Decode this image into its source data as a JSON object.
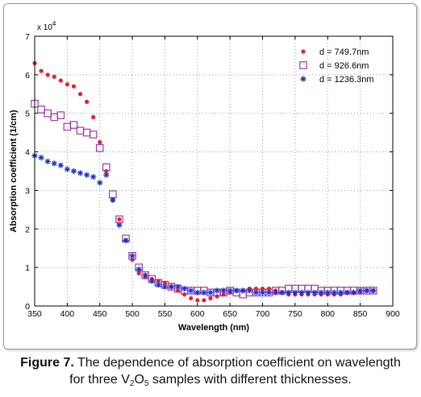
{
  "chart_data": {
    "type": "scatter",
    "xlabel": "Wavelength (nm)",
    "ylabel": "Absorption coefficient (1/cm)",
    "y_multiplier": "x 10",
    "y_multiplier_exp": "4",
    "xlim": [
      350,
      900
    ],
    "ylim": [
      0,
      7
    ],
    "xticks": [
      350,
      400,
      450,
      500,
      550,
      600,
      650,
      700,
      750,
      800,
      850,
      900
    ],
    "yticks": [
      0,
      1,
      2,
      3,
      4,
      5,
      6,
      7
    ],
    "grid": true,
    "legend_position": "top-right",
    "series": [
      {
        "name": "d = 749.7nm",
        "marker": "filled-circle",
        "color": "#e8202a",
        "x": [
          350,
          360,
          370,
          380,
          390,
          400,
          410,
          420,
          430,
          440,
          450,
          460,
          470,
          480,
          490,
          500,
          510,
          520,
          530,
          540,
          550,
          560,
          570,
          580,
          590,
          600,
          610,
          620,
          630,
          640,
          650,
          660,
          670,
          680,
          690,
          700,
          710,
          720,
          730,
          740,
          750,
          760,
          770,
          780,
          790,
          800,
          810,
          820,
          830,
          840,
          850,
          860,
          870
        ],
        "y": [
          6.3,
          6.1,
          6.0,
          5.95,
          5.85,
          5.75,
          5.7,
          5.5,
          5.3,
          4.9,
          4.25,
          3.5,
          2.75,
          2.25,
          1.7,
          1.2,
          0.85,
          0.75,
          0.7,
          0.65,
          0.6,
          0.5,
          0.4,
          0.3,
          0.2,
          0.15,
          0.15,
          0.2,
          0.25,
          0.3,
          0.35,
          0.4,
          0.4,
          0.45,
          0.45,
          0.45,
          0.45,
          0.4,
          0.35,
          0.3,
          0.3,
          0.3,
          0.3,
          0.3,
          0.3,
          0.3,
          0.3,
          0.3,
          0.35,
          0.35,
          0.35,
          0.4,
          0.4
        ]
      },
      {
        "name": "d = 926.6nm",
        "marker": "open-square",
        "color": "#a03aa8",
        "x": [
          350,
          360,
          370,
          380,
          390,
          400,
          410,
          420,
          430,
          440,
          450,
          460,
          470,
          480,
          490,
          500,
          510,
          520,
          530,
          540,
          550,
          560,
          570,
          580,
          590,
          600,
          610,
          620,
          630,
          640,
          650,
          660,
          670,
          680,
          690,
          700,
          710,
          720,
          730,
          740,
          750,
          760,
          770,
          780,
          790,
          800,
          810,
          820,
          830,
          840,
          850,
          860,
          870
        ],
        "y": [
          5.25,
          5.1,
          5.0,
          4.9,
          4.95,
          4.65,
          4.7,
          4.55,
          4.5,
          4.45,
          4.1,
          3.6,
          2.9,
          2.25,
          1.75,
          1.3,
          1.0,
          0.8,
          0.7,
          0.6,
          0.55,
          0.5,
          0.45,
          0.4,
          0.4,
          0.4,
          0.4,
          0.35,
          0.35,
          0.35,
          0.4,
          0.35,
          0.3,
          0.35,
          0.35,
          0.35,
          0.35,
          0.4,
          0.4,
          0.45,
          0.45,
          0.45,
          0.45,
          0.45,
          0.4,
          0.4,
          0.4,
          0.4,
          0.4,
          0.4,
          0.4,
          0.4,
          0.4
        ]
      },
      {
        "name": "d = 1236.3nm",
        "marker": "star",
        "color": "#1a35c8",
        "x": [
          350,
          360,
          370,
          380,
          390,
          400,
          410,
          420,
          430,
          440,
          450,
          460,
          470,
          480,
          490,
          500,
          510,
          520,
          530,
          540,
          550,
          560,
          570,
          580,
          590,
          600,
          610,
          620,
          630,
          640,
          650,
          660,
          670,
          680,
          690,
          700,
          710,
          720,
          730,
          740,
          750,
          760,
          770,
          780,
          790,
          800,
          810,
          820,
          830,
          840,
          850,
          860,
          870
        ],
        "y": [
          3.9,
          3.85,
          3.75,
          3.7,
          3.65,
          3.55,
          3.5,
          3.45,
          3.4,
          3.35,
          3.2,
          3.4,
          2.75,
          2.1,
          1.7,
          1.3,
          0.95,
          0.8,
          0.65,
          0.55,
          0.5,
          0.5,
          0.5,
          0.45,
          0.4,
          0.35,
          0.35,
          0.35,
          0.4,
          0.4,
          0.4,
          0.4,
          0.4,
          0.4,
          0.35,
          0.35,
          0.35,
          0.35,
          0.35,
          0.35,
          0.35,
          0.35,
          0.35,
          0.35,
          0.35,
          0.35,
          0.35,
          0.35,
          0.35,
          0.35,
          0.4,
          0.4,
          0.4
        ]
      }
    ]
  },
  "caption": {
    "label": "Figure 7.",
    "line1": "The dependence of absorption coefficient on wavelength",
    "line2_start": "for three V",
    "sub1": "2",
    "mid": "O",
    "sub2": "5",
    "line2_end": " samples with different thicknesses."
  }
}
